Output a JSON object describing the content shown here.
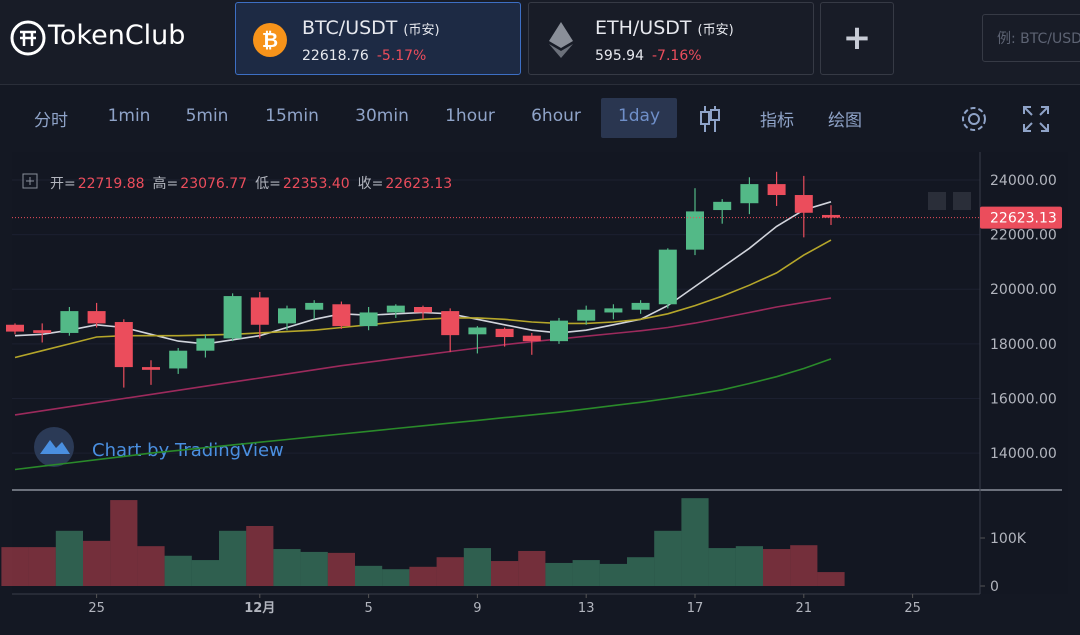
{
  "header": {
    "logo": "TokenClub",
    "pairs": [
      {
        "symbol": "BTC/USDT",
        "exchange": "(币安)",
        "price": "22618.76",
        "change": "-5.17%"
      },
      {
        "symbol": "ETH/USDT",
        "exchange": "(币安)",
        "price": "595.94",
        "change": "-7.16%"
      }
    ],
    "add_button": "+",
    "search_placeholder": "例: BTC/USDT"
  },
  "toolbar": {
    "intervals": [
      "分时",
      "1min",
      "5min",
      "15min",
      "30min",
      "1hour",
      "6hour",
      "1day"
    ],
    "selected": 7,
    "indicators": "指标",
    "drawing": "绘图"
  },
  "chart_data": {
    "type": "candlestick",
    "watermark": "Chart by TradingView",
    "legend": [
      {
        "label": "开=",
        "value": "22719.88"
      },
      {
        "label": "高=",
        "value": "23076.77"
      },
      {
        "label": "低=",
        "value": "22353.40"
      },
      {
        "label": "收=",
        "value": "22623.13"
      }
    ],
    "last_price_label": "22623.13",
    "categories": [
      null,
      null,
      null,
      "25",
      null,
      null,
      null,
      null,
      null,
      "12月",
      null,
      null,
      null,
      "5",
      null,
      null,
      null,
      "9",
      null,
      null,
      null,
      "13",
      null,
      null,
      null,
      "17",
      null,
      null,
      null,
      "21",
      null,
      null,
      null,
      "25",
      null
    ],
    "open": [
      18700,
      18500,
      18400,
      19200,
      18800,
      17150,
      17100,
      17750,
      18200,
      19700,
      18750,
      19250,
      19450,
      18650,
      19150,
      19350,
      19200,
      18350,
      18550,
      18300,
      18100,
      18850,
      19150,
      19250,
      19450,
      21450,
      22900,
      23150,
      23850,
      23450,
      22719.88,
      null,
      null,
      null,
      null
    ],
    "high": [
      18750,
      18750,
      19350,
      19500,
      18900,
      17400,
      17850,
      18350,
      19850,
      19900,
      19400,
      19600,
      19550,
      19350,
      19450,
      19400,
      19300,
      18650,
      18600,
      18400,
      18950,
      19400,
      19450,
      19600,
      21500,
      23700,
      23300,
      24100,
      24300,
      24150,
      23076.77,
      null,
      null,
      null,
      null
    ],
    "low": [
      18350,
      18050,
      18300,
      18600,
      16400,
      16500,
      16900,
      17500,
      18100,
      18200,
      18500,
      18900,
      18550,
      18500,
      18950,
      18900,
      17700,
      17650,
      17900,
      17600,
      18000,
      18700,
      18900,
      19100,
      19300,
      21250,
      22400,
      22750,
      23050,
      21900,
      22353.4,
      null,
      null,
      null,
      null
    ],
    "close": [
      18450,
      18400,
      19200,
      18750,
      17150,
      17050,
      17750,
      18200,
      19750,
      18700,
      19300,
      19500,
      18650,
      19150,
      19400,
      19150,
      18320,
      18600,
      18250,
      18100,
      18850,
      19250,
      19300,
      19500,
      21450,
      22850,
      23200,
      23850,
      23450,
      22800,
      22623.13,
      null,
      null,
      null,
      null
    ],
    "up_color": "#53b987",
    "down_color": "#eb4d5c",
    "moving_averages": [
      {
        "color": "#d1d4dc",
        "values": [
          18300,
          18350,
          18500,
          18700,
          18600,
          18350,
          18100,
          18000,
          18150,
          18300,
          18600,
          18900,
          19100,
          19050,
          19100,
          19150,
          19100,
          18900,
          18700,
          18500,
          18400,
          18500,
          18700,
          18900,
          19400,
          20100,
          20800,
          21500,
          22300,
          22900,
          23200,
          null,
          null,
          null,
          null
        ]
      },
      {
        "color": "#b5a62a",
        "values": [
          17500,
          17750,
          18000,
          18250,
          18300,
          18300,
          18300,
          18320,
          18350,
          18400,
          18450,
          18500,
          18600,
          18700,
          18800,
          18900,
          18950,
          18950,
          18900,
          18800,
          18750,
          18750,
          18800,
          18900,
          19100,
          19400,
          19750,
          20150,
          20600,
          21250,
          21800,
          null,
          null,
          null,
          null
        ]
      },
      {
        "color": "#9c2a5c",
        "values": [
          15400,
          15550,
          15700,
          15850,
          16000,
          16150,
          16300,
          16450,
          16600,
          16750,
          16900,
          17050,
          17200,
          17330,
          17460,
          17590,
          17720,
          17850,
          17970,
          18080,
          18180,
          18280,
          18380,
          18480,
          18600,
          18760,
          18950,
          19150,
          19350,
          19520,
          19680,
          null,
          null,
          null,
          null
        ]
      },
      {
        "color": "#2a8a2a",
        "values": [
          13400,
          13520,
          13640,
          13760,
          13880,
          14000,
          14100,
          14200,
          14300,
          14400,
          14500,
          14600,
          14700,
          14800,
          14900,
          15000,
          15100,
          15200,
          15300,
          15400,
          15500,
          15620,
          15740,
          15860,
          16000,
          16150,
          16320,
          16550,
          16800,
          17100,
          17450,
          null,
          null,
          null,
          null
        ]
      }
    ],
    "ylim": [
      12650,
      25025
    ],
    "yticks": [
      {
        "value": 14000,
        "label": "14000.00"
      },
      {
        "value": 16000,
        "label": "16000.00"
      },
      {
        "value": 18000,
        "label": "18000.00"
      },
      {
        "value": 20000,
        "label": "20000.00"
      },
      {
        "value": 22000,
        "label": "22000.00"
      },
      {
        "value": 24000,
        "label": "24000.00"
      }
    ],
    "volume": {
      "values": [
        81000,
        81000,
        115000,
        94000,
        179000,
        83000,
        63000,
        54000,
        115000,
        125000,
        77000,
        71000,
        69000,
        42000,
        35000,
        40000,
        60000,
        79000,
        52000,
        73000,
        48000,
        54000,
        46000,
        60000,
        115000,
        183000,
        79000,
        83000,
        77000,
        85000,
        29000,
        null,
        null,
        null,
        null
      ],
      "ylim": [
        0,
        200000
      ],
      "yticks": [
        0,
        {
          "value": 100000,
          "label": "100K"
        }
      ]
    }
  }
}
